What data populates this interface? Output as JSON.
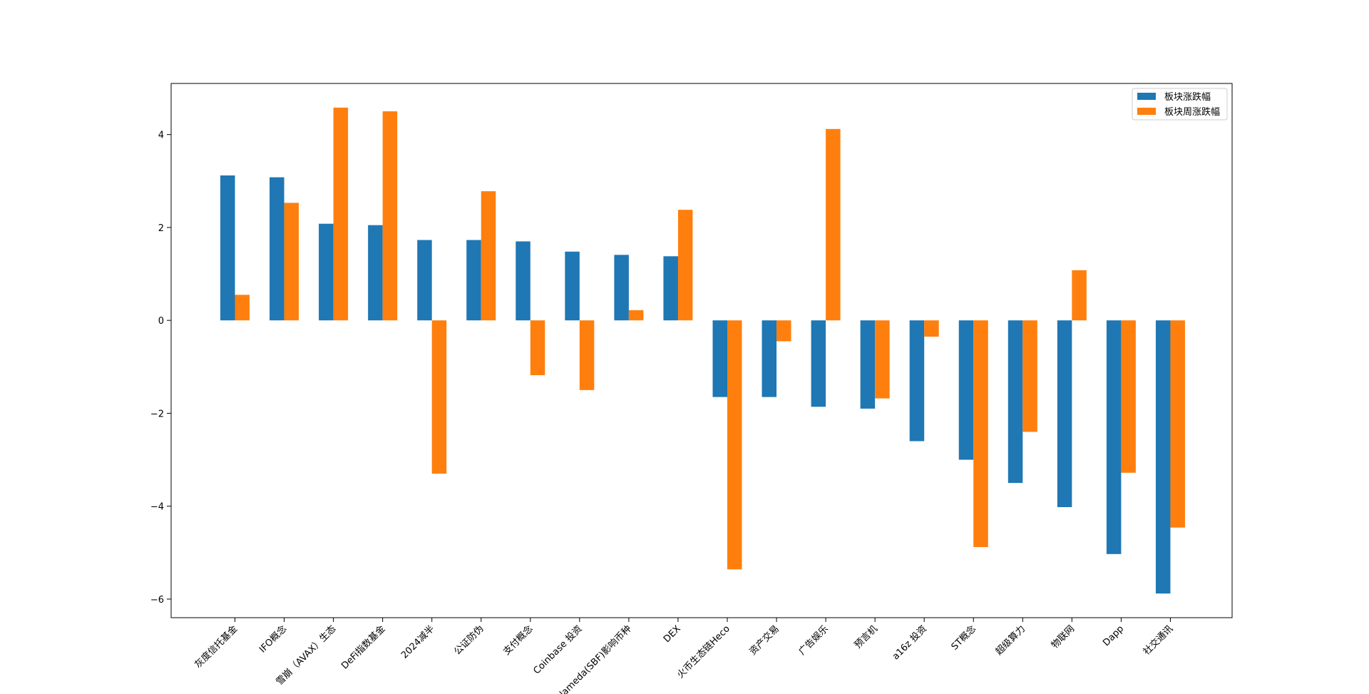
{
  "chart_data": {
    "type": "bar",
    "title": "",
    "xlabel": "",
    "ylabel": "",
    "ylim": [
      -6.4,
      5.1
    ],
    "yticks": [
      -6,
      -4,
      -2,
      0,
      2,
      4
    ],
    "grid": false,
    "legend_position": "top-right",
    "categories": [
      "灰度信托基金",
      "IFO概念",
      "雪崩（AVAX）生态",
      "DeFi指数基金",
      "2024减半",
      "公证防伪",
      "支付概念",
      "Coinbase 投资",
      "Alameda(SBF)影响币种",
      "DEX",
      "火币生态链Heco",
      "资产交易",
      "广告娱乐",
      "预言机",
      "a16z 投资",
      "ST概念",
      "超级算力",
      "物联网",
      "Dapp",
      "社交通讯"
    ],
    "series": [
      {
        "name": "板块涨跌幅",
        "color": "#1f77b4",
        "values": [
          3.12,
          3.08,
          2.08,
          2.05,
          1.73,
          1.73,
          1.7,
          1.48,
          1.41,
          1.38,
          -1.65,
          -1.65,
          -1.86,
          -1.9,
          -2.6,
          -3.0,
          -3.5,
          -4.02,
          -5.03,
          -5.88
        ]
      },
      {
        "name": "板块周涨跌幅",
        "color": "#ff7f0e",
        "values": [
          0.55,
          2.53,
          4.58,
          4.5,
          -3.3,
          2.78,
          -1.18,
          -1.5,
          0.22,
          2.38,
          -5.36,
          -0.45,
          4.12,
          -1.68,
          -0.35,
          -4.88,
          -2.4,
          1.08,
          -3.28,
          -4.46
        ]
      }
    ]
  }
}
